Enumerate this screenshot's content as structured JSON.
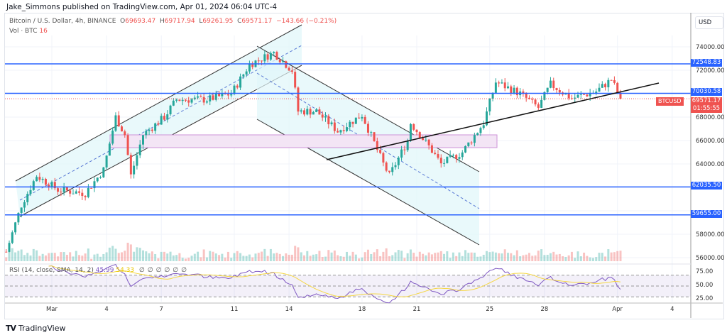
{
  "publisher": "Jake_Simmons published on TradingView.com, Apr 01, 2024 06:04 UTC-4",
  "symbol": {
    "description": "Bitcoin / U.S. Dollar, 4h, BINANCE",
    "open": "69693.47",
    "high": "69717.94",
    "low": "69261.95",
    "close": "69571.17",
    "change": "−143.66 (−0.21%)",
    "volume_label": "Vol · BTC",
    "volume_value": "16"
  },
  "price_axis": {
    "currency": "USD",
    "ticks": [
      "74000.00",
      "72000.00",
      "68000.00",
      "66000.00",
      "64000.00",
      "58000.00",
      "56000.00"
    ],
    "tick_values": [
      74000,
      72000,
      68000,
      66000,
      64000,
      58000,
      56000
    ],
    "levels": [
      {
        "label": "72548.83",
        "value": 72548.83
      },
      {
        "label": "70030.58",
        "value": 70030.58
      },
      {
        "label": "62035.50",
        "value": 62035.5
      },
      {
        "label": "59655.00",
        "value": 59655.0
      }
    ],
    "current": {
      "ticker": "BTCUSD",
      "price": "69571.17",
      "countdown": "01:55:55",
      "value": 69571.17
    }
  },
  "rsi": {
    "legend": "RSI (14, close, SMA, 14, 2)",
    "value": "45.99",
    "sma_value": "54.33",
    "empty_values": [
      "∅",
      "∅",
      "∅",
      "∅",
      "∅",
      "∅"
    ],
    "ticks": [
      "75.00",
      "50.00",
      "25.00"
    ]
  },
  "time_axis": [
    {
      "label": "Mar",
      "date": "2024-03-01"
    },
    {
      "label": "4",
      "date": "2024-03-04"
    },
    {
      "label": "7",
      "date": "2024-03-07"
    },
    {
      "label": "11",
      "date": "2024-03-11"
    },
    {
      "label": "14",
      "date": "2024-03-14"
    },
    {
      "label": "18",
      "date": "2024-03-18"
    },
    {
      "label": "21",
      "date": "2024-03-21"
    },
    {
      "label": "25",
      "date": "2024-03-25"
    },
    {
      "label": "28",
      "date": "2024-03-28"
    },
    {
      "label": "Apr",
      "date": "2024-04-01"
    },
    {
      "label": "4",
      "date": "2024-04-04"
    }
  ],
  "colors": {
    "up": "#26a69a",
    "down": "#ef5350",
    "level": "#2962ff",
    "rsi": "#7e57c2",
    "rsi_sma": "#f5d742",
    "box": "#ce93d8",
    "channel_fill": "#e0f7fa"
  },
  "price_path": [
    [
      "2024-02-27T12:00",
      56500
    ],
    [
      "2024-02-28T08:00",
      60500
    ],
    [
      "2024-02-29T04:00",
      63000
    ],
    [
      "2024-03-01T08:00",
      61800
    ],
    [
      "2024-03-02T20:00",
      61500
    ],
    [
      "2024-03-03T20:00",
      63500
    ],
    [
      "2024-03-04T12:00",
      68000
    ],
    [
      "2024-03-05T00:00",
      66500
    ],
    [
      "2024-03-05T08:00",
      63000
    ],
    [
      "2024-03-06T00:00",
      66500
    ],
    [
      "2024-03-07T04:00",
      68000
    ],
    [
      "2024-03-07T20:00",
      69500
    ],
    [
      "2024-03-09T12:00",
      69500
    ],
    [
      "2024-03-10T20:00",
      70000
    ],
    [
      "2024-03-11T20:00",
      72500
    ],
    [
      "2024-03-13T04:00",
      73500
    ],
    [
      "2024-03-14T04:00",
      72000
    ],
    [
      "2024-03-14T12:00",
      68500
    ],
    [
      "2024-03-15T12:00",
      68500
    ],
    [
      "2024-03-16T16:00",
      66800
    ],
    [
      "2024-03-18T00:00",
      68200
    ],
    [
      "2024-03-19T04:00",
      64000
    ],
    [
      "2024-03-19T12:00",
      63000
    ],
    [
      "2024-03-20T12:00",
      66000
    ],
    [
      "2024-03-20T16:00",
      67500
    ],
    [
      "2024-03-21T16:00",
      65500
    ],
    [
      "2024-03-22T08:00",
      64000
    ],
    [
      "2024-03-23T12:00",
      65000
    ],
    [
      "2024-03-24T16:00",
      67500
    ],
    [
      "2024-03-25T08:00",
      71000
    ],
    [
      "2024-03-26T16:00",
      70000
    ],
    [
      "2024-03-27T16:00",
      68800
    ],
    [
      "2024-03-28T08:00",
      70800
    ],
    [
      "2024-03-29T12:00",
      69600
    ],
    [
      "2024-03-30T20:00",
      70200
    ],
    [
      "2024-03-31T16:00",
      71200
    ],
    [
      "2024-04-01T04:00",
      69571.17
    ]
  ],
  "footer": {
    "logo_mark": "TV",
    "brand": "TradingView"
  }
}
